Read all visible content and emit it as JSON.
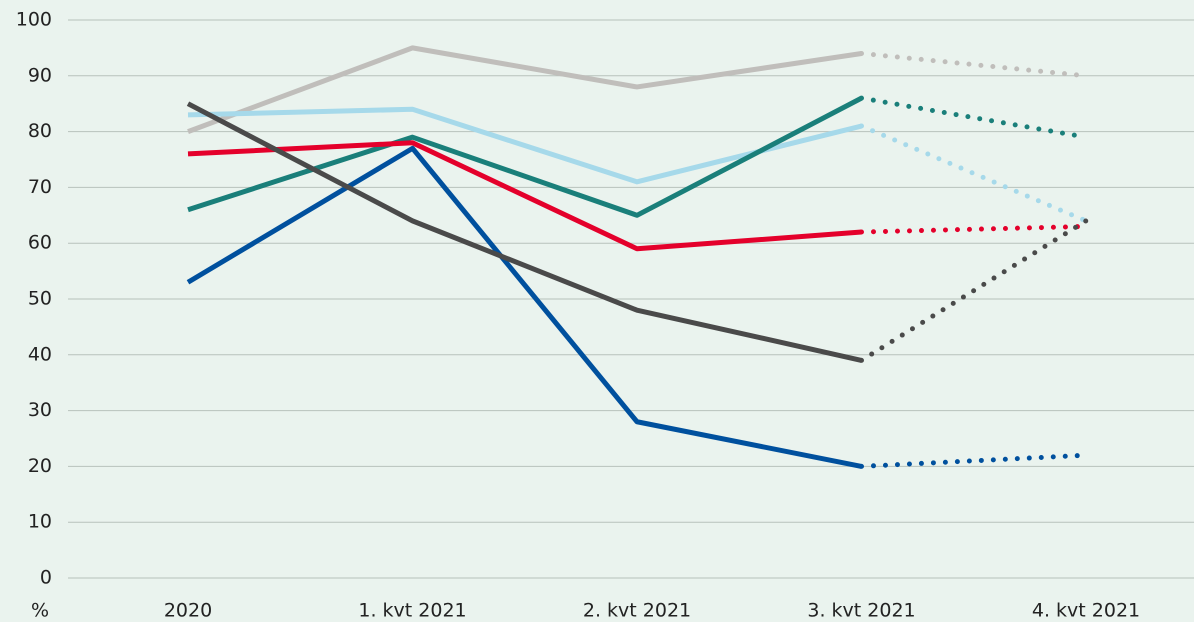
{
  "chart_data": {
    "type": "line",
    "categories": [
      "2020",
      "1. kvt 2021",
      "2. kvt 2021",
      "3. kvt 2021",
      "4. kvt 2021"
    ],
    "series": [
      {
        "color": "#c0bebb",
        "values": [
          80,
          95,
          88,
          94,
          90
        ]
      },
      {
        "color": "#a6d9ea",
        "values": [
          83,
          84,
          71,
          81,
          64
        ]
      },
      {
        "color": "#1a7f7a",
        "values": [
          66,
          79,
          65,
          86,
          79
        ]
      },
      {
        "color": "#e4002b",
        "values": [
          76,
          78,
          59,
          62,
          63
        ]
      },
      {
        "color": "#00509e",
        "values": [
          53,
          77,
          28,
          20,
          22
        ]
      },
      {
        "color": "#4a4a4a",
        "values": [
          85,
          64,
          48,
          39,
          64
        ]
      }
    ],
    "ylabel": "%",
    "ylim": [
      0,
      100
    ],
    "yticks": [
      0,
      10,
      20,
      30,
      40,
      50,
      60,
      70,
      80,
      90,
      100
    ],
    "grid": true,
    "dotted_last_segment": true
  }
}
